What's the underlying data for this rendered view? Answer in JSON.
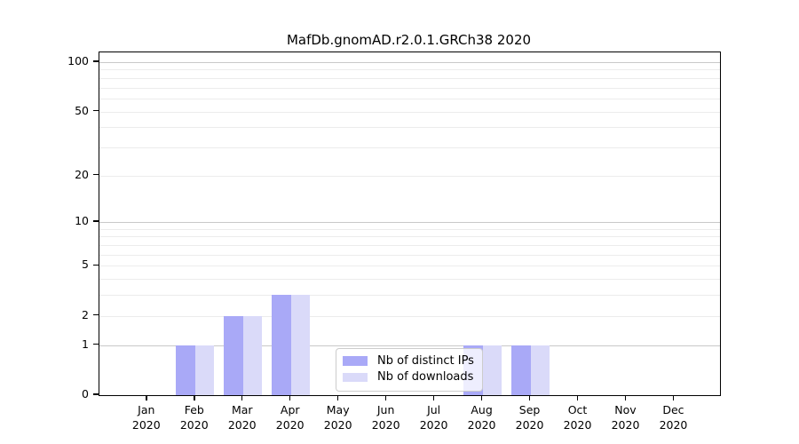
{
  "chart_data": {
    "type": "bar",
    "title": "MafDb.gnomAD.r2.0.1.GRCh38 2020",
    "categories": [
      "Jan 2020",
      "Feb 2020",
      "Mar 2020",
      "Apr 2020",
      "May 2020",
      "Jun 2020",
      "Jul 2020",
      "Aug 2020",
      "Sep 2020",
      "Oct 2020",
      "Nov 2020",
      "Dec 2020"
    ],
    "series": [
      {
        "name": "Nb of distinct IPs",
        "color": "#a9a9f7",
        "values": [
          0,
          1,
          2,
          3,
          0,
          0,
          0,
          1,
          1,
          0,
          0,
          0
        ]
      },
      {
        "name": "Nb of downloads",
        "color": "#dadaf9",
        "values": [
          0,
          1,
          2,
          3,
          0,
          0,
          0,
          1,
          1,
          0,
          0,
          0
        ]
      }
    ],
    "xlabel": "",
    "ylabel": "",
    "yscale": "log1p",
    "ylim": [
      0,
      110
    ],
    "y_ticks": [
      0,
      1,
      2,
      5,
      10,
      20,
      50,
      100
    ],
    "y_major_gridlines": [
      1,
      10,
      100
    ],
    "y_minor_gridlines": [
      2,
      3,
      4,
      5,
      6,
      7,
      8,
      9,
      20,
      30,
      40,
      50,
      60,
      70,
      80,
      90
    ],
    "grid": true,
    "legend_position": "lower center-left inside plot"
  },
  "colors": {
    "bar_dark": "#a9a9f7",
    "bar_light": "#dadaf9",
    "grid_major": "#c9c9c9",
    "grid_minor": "#ececec",
    "axis": "#000000",
    "legend_border": "#cccccc"
  }
}
